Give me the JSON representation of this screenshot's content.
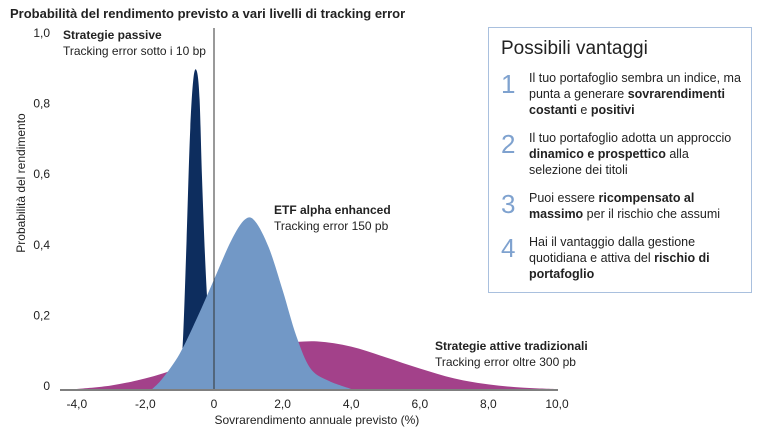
{
  "chart_data": {
    "type": "area",
    "title": "Probabilità del rendimento previsto a vari livelli di tracking error",
    "xlabel": "Sovrarendimento annuale previsto (%)",
    "ylabel": "Probabilità del rendimento",
    "xlim": [
      -4.5,
      10.5
    ],
    "ylim": [
      0,
      1.0
    ],
    "x_ticks": [
      "-4,0",
      "-2,0",
      "0",
      "2,0",
      "4,0",
      "6,0",
      "8,0",
      "10,0"
    ],
    "x_tick_values": [
      -4,
      -2,
      0,
      2,
      4,
      6,
      8,
      10
    ],
    "y_ticks": [
      "0",
      "0,2",
      "0,4",
      "0,6",
      "0,8",
      "1,0"
    ],
    "y_tick_values": [
      0,
      0.2,
      0.4,
      0.6,
      0.8,
      1.0
    ],
    "grid": false,
    "series": [
      {
        "name": "Strategie attive tradizionali",
        "subtitle": "Tracking error oltre 300 pb",
        "color": "#a3418a",
        "points": [
          [
            -4,
            0
          ],
          [
            -3,
            0.01
          ],
          [
            -2,
            0.03
          ],
          [
            -1,
            0.06
          ],
          [
            0,
            0.095
          ],
          [
            1,
            0.12
          ],
          [
            2,
            0.13
          ],
          [
            3,
            0.135
          ],
          [
            4,
            0.12
          ],
          [
            5,
            0.09
          ],
          [
            6,
            0.058
          ],
          [
            7,
            0.03
          ],
          [
            8,
            0.013
          ],
          [
            9,
            0.004
          ],
          [
            10,
            0
          ]
        ]
      },
      {
        "name": "Strategie passive",
        "subtitle": "Tracking error sotto i 10 bp",
        "color": "#0d2d5e",
        "points": [
          [
            -1.0,
            0
          ],
          [
            -0.9,
            0.15
          ],
          [
            -0.8,
            0.42
          ],
          [
            -0.7,
            0.72
          ],
          [
            -0.6,
            0.88
          ],
          [
            -0.5,
            0.9
          ],
          [
            -0.42,
            0.82
          ],
          [
            -0.35,
            0.6
          ],
          [
            -0.25,
            0.35
          ],
          [
            -0.15,
            0.18
          ],
          [
            -0.05,
            0.07
          ],
          [
            0.05,
            0
          ]
        ]
      },
      {
        "name": "ETF alpha enhanced",
        "subtitle": "Tracking error 150 pb",
        "color": "#7298c6",
        "points": [
          [
            -1.8,
            0
          ],
          [
            -1.5,
            0.03
          ],
          [
            -1.0,
            0.1
          ],
          [
            -0.5,
            0.2
          ],
          [
            0,
            0.31
          ],
          [
            0.5,
            0.42
          ],
          [
            0.9,
            0.48
          ],
          [
            1.2,
            0.475
          ],
          [
            1.6,
            0.4
          ],
          [
            2.0,
            0.28
          ],
          [
            2.4,
            0.15
          ],
          [
            2.8,
            0.06
          ],
          [
            3.3,
            0.025
          ],
          [
            4.0,
            0
          ]
        ]
      }
    ]
  },
  "panel": {
    "title": "Possibili vantaggi",
    "items": [
      {
        "num": "1",
        "parts": [
          [
            "Il tuo portafoglio sembra un  indice, ma punta a generare ",
            false
          ],
          [
            "sovrarendimenti costanti",
            true
          ],
          [
            " e ",
            false
          ],
          [
            "positivi",
            true
          ]
        ]
      },
      {
        "num": "2",
        "parts": [
          [
            "Il tuo portafoglio adotta un approccio ",
            false
          ],
          [
            "dinamico e prospettico",
            true
          ],
          [
            " alla selezione dei titoli",
            false
          ]
        ]
      },
      {
        "num": "3",
        "parts": [
          [
            "Puoi essere ",
            false
          ],
          [
            "ricompensato al massimo",
            true
          ],
          [
            " per il rischio che assumi",
            false
          ]
        ]
      },
      {
        "num": "4",
        "parts": [
          [
            "Hai il vantaggio dalla gestione quotidiana e attiva del ",
            false
          ],
          [
            "rischio di portafoglio",
            true
          ]
        ]
      }
    ]
  }
}
